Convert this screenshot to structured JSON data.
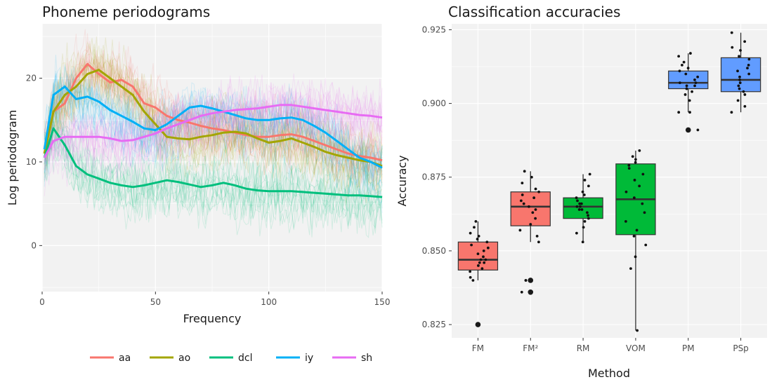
{
  "chart_data": [
    {
      "type": "line",
      "title": "Phoneme periodograms",
      "xlabel": "Frequency",
      "ylabel": "Log periodogram",
      "xlim": [
        0,
        150
      ],
      "ylim": [
        -5.5,
        26.5
      ],
      "xticks": [
        0,
        50,
        100,
        150
      ],
      "yticks": [
        0,
        10,
        20
      ],
      "grid": true,
      "legend_position": "bottom",
      "series": [
        {
          "name": "aa",
          "color": "#F8766D",
          "x": [
            1,
            5,
            10,
            15,
            20,
            25,
            30,
            35,
            40,
            45,
            50,
            55,
            60,
            65,
            70,
            75,
            80,
            85,
            90,
            95,
            100,
            105,
            110,
            115,
            120,
            125,
            130,
            135,
            140,
            145,
            150
          ],
          "y": [
            11,
            16,
            17,
            20,
            21.7,
            20.5,
            19.5,
            19.8,
            19,
            17,
            16.5,
            15.5,
            15,
            14.7,
            14.3,
            14,
            13.8,
            13.5,
            13.2,
            13,
            13,
            13.2,
            13.3,
            13,
            12.5,
            12,
            11.5,
            11,
            10.7,
            10.5,
            10.2
          ]
        },
        {
          "name": "ao",
          "color": "#A3A500",
          "x": [
            1,
            5,
            10,
            15,
            20,
            25,
            30,
            35,
            40,
            45,
            50,
            55,
            60,
            65,
            70,
            75,
            80,
            85,
            90,
            95,
            100,
            105,
            110,
            115,
            120,
            125,
            130,
            135,
            140,
            145,
            150
          ],
          "y": [
            11,
            16,
            18,
            19,
            20.5,
            21,
            20,
            19,
            18,
            16,
            14.5,
            13,
            12.8,
            12.7,
            13,
            13.2,
            13.5,
            13.6,
            13.4,
            12.8,
            12.3,
            12.5,
            12.8,
            12.3,
            11.8,
            11.2,
            10.8,
            10.5,
            10.2,
            10,
            9.5
          ]
        },
        {
          "name": "dcl",
          "color": "#00BF7D",
          "x": [
            1,
            5,
            10,
            15,
            20,
            25,
            30,
            35,
            40,
            45,
            50,
            55,
            60,
            65,
            70,
            75,
            80,
            85,
            90,
            95,
            100,
            105,
            110,
            115,
            120,
            125,
            130,
            135,
            140,
            145,
            150
          ],
          "y": [
            10.5,
            14,
            12,
            9.5,
            8.5,
            8,
            7.5,
            7.2,
            7,
            7.2,
            7.5,
            7.8,
            7.6,
            7.3,
            7,
            7.2,
            7.5,
            7.2,
            6.8,
            6.6,
            6.5,
            6.5,
            6.5,
            6.4,
            6.3,
            6.2,
            6.1,
            6,
            6,
            5.9,
            5.8
          ]
        },
        {
          "name": "iy",
          "color": "#00B0F6",
          "x": [
            1,
            5,
            10,
            15,
            20,
            25,
            30,
            35,
            40,
            45,
            50,
            55,
            60,
            65,
            70,
            75,
            80,
            85,
            90,
            95,
            100,
            105,
            110,
            115,
            120,
            125,
            130,
            135,
            140,
            145,
            150
          ],
          "y": [
            11.5,
            18,
            19,
            17.5,
            17.8,
            17.2,
            16.2,
            15.5,
            14.8,
            14,
            13.8,
            14.5,
            15.5,
            16.5,
            16.7,
            16.4,
            16,
            15.6,
            15.2,
            15,
            15,
            15.2,
            15.3,
            15,
            14.3,
            13.5,
            12.5,
            11.5,
            10.5,
            10,
            9.3
          ]
        },
        {
          "name": "sh",
          "color": "#E76BF3",
          "x": [
            1,
            5,
            10,
            15,
            20,
            25,
            30,
            35,
            40,
            45,
            50,
            55,
            60,
            65,
            70,
            75,
            80,
            85,
            90,
            95,
            100,
            105,
            110,
            115,
            120,
            125,
            130,
            135,
            140,
            145,
            150
          ],
          "y": [
            10.5,
            12.5,
            13,
            13,
            13,
            13,
            12.8,
            12.5,
            12.6,
            13,
            13.4,
            14,
            14.5,
            15,
            15.5,
            15.8,
            16,
            16.2,
            16.3,
            16.4,
            16.6,
            16.8,
            16.8,
            16.6,
            16.4,
            16.2,
            16,
            15.8,
            15.6,
            15.5,
            15.3
          ]
        }
      ]
    },
    {
      "type": "box",
      "title": "Classification accuracies",
      "xlabel": "Method",
      "ylabel": "Accuracy",
      "ylim": [
        0.8205,
        0.927
      ],
      "yticks": [
        0.825,
        0.85,
        0.875,
        0.9,
        0.925
      ],
      "ytick_labels": [
        "0.825",
        "0.850",
        "0.875",
        "0.900",
        "0.925"
      ],
      "grid": true,
      "categories": [
        "FM",
        "FM²",
        "RM",
        "VOM",
        "PM",
        "PSp"
      ],
      "boxes": [
        {
          "category": "FM",
          "color": "#F8766D",
          "whisker_low": 0.84,
          "q1": 0.8435,
          "median": 0.847,
          "q3": 0.853,
          "whisker_high": 0.86,
          "outliers": [
            0.825
          ],
          "points": [
            0.84,
            0.841,
            0.843,
            0.844,
            0.845,
            0.846,
            0.846,
            0.847,
            0.847,
            0.848,
            0.849,
            0.85,
            0.851,
            0.852,
            0.853,
            0.854,
            0.855,
            0.856,
            0.858,
            0.86
          ]
        },
        {
          "category": "FM²",
          "color": "#F8766D",
          "whisker_low": 0.853,
          "q1": 0.8585,
          "median": 0.865,
          "q3": 0.87,
          "whisker_high": 0.877,
          "outliers": [
            0.84,
            0.836
          ],
          "points": [
            0.836,
            0.84,
            0.84,
            0.853,
            0.855,
            0.857,
            0.859,
            0.861,
            0.863,
            0.864,
            0.865,
            0.866,
            0.867,
            0.868,
            0.869,
            0.87,
            0.871,
            0.873,
            0.875,
            0.877
          ]
        },
        {
          "category": "RM",
          "color": "#00BA38",
          "whisker_low": 0.853,
          "q1": 0.861,
          "median": 0.865,
          "q3": 0.868,
          "whisker_high": 0.876,
          "outliers": [],
          "points": [
            0.853,
            0.856,
            0.858,
            0.86,
            0.861,
            0.862,
            0.863,
            0.864,
            0.864,
            0.865,
            0.865,
            0.866,
            0.866,
            0.867,
            0.868,
            0.869,
            0.87,
            0.872,
            0.874,
            0.876
          ]
        },
        {
          "category": "VOM",
          "color": "#00BA38",
          "whisker_low": 0.823,
          "q1": 0.8555,
          "median": 0.8675,
          "q3": 0.8795,
          "whisker_high": 0.884,
          "outliers": [],
          "points": [
            0.823,
            0.844,
            0.848,
            0.852,
            0.855,
            0.857,
            0.86,
            0.863,
            0.866,
            0.868,
            0.87,
            0.872,
            0.874,
            0.876,
            0.878,
            0.879,
            0.88,
            0.881,
            0.882,
            0.884
          ]
        },
        {
          "category": "PM",
          "color": "#619CFF",
          "whisker_low": 0.897,
          "q1": 0.905,
          "median": 0.907,
          "q3": 0.911,
          "whisker_high": 0.917,
          "outliers": [
            0.891
          ],
          "points": [
            0.891,
            0.897,
            0.897,
            0.901,
            0.903,
            0.904,
            0.905,
            0.906,
            0.906,
            0.907,
            0.907,
            0.908,
            0.909,
            0.91,
            0.911,
            0.912,
            0.913,
            0.914,
            0.916,
            0.917
          ]
        },
        {
          "category": "PSp",
          "color": "#619CFF",
          "whisker_low": 0.897,
          "q1": 0.904,
          "median": 0.908,
          "q3": 0.9155,
          "whisker_high": 0.924,
          "outliers": [],
          "points": [
            0.897,
            0.899,
            0.901,
            0.903,
            0.904,
            0.905,
            0.906,
            0.907,
            0.908,
            0.909,
            0.91,
            0.911,
            0.912,
            0.913,
            0.915,
            0.916,
            0.918,
            0.919,
            0.921,
            0.924
          ]
        }
      ]
    }
  ]
}
